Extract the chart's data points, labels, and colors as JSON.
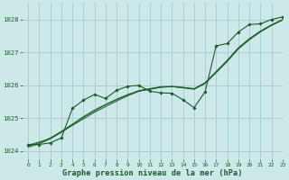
{
  "title": "Graphe pression niveau de la mer (hPa)",
  "bg_color": "#cce8e8",
  "grid_color": "#aacece",
  "line_color": "#1a5c2a",
  "xlim": [
    -0.5,
    23
  ],
  "ylim": [
    1023.75,
    1028.5
  ],
  "yticks": [
    1024,
    1025,
    1026,
    1027,
    1028
  ],
  "xticks": [
    0,
    1,
    2,
    3,
    4,
    5,
    6,
    7,
    8,
    9,
    10,
    11,
    12,
    13,
    14,
    15,
    16,
    17,
    18,
    19,
    20,
    21,
    22,
    23
  ],
  "series_main": [
    1024.2,
    1024.2,
    1024.25,
    1024.4,
    1025.3,
    1025.55,
    1025.72,
    1025.6,
    1025.85,
    1025.97,
    1026.0,
    1025.82,
    1025.77,
    1025.76,
    1025.56,
    1025.32,
    1025.8,
    1027.2,
    1027.27,
    1027.62,
    1027.85,
    1027.87,
    1028.0,
    1028.08
  ],
  "linear1": [
    1024.18,
    1024.28,
    1024.38,
    1024.58,
    1024.78,
    1024.98,
    1025.18,
    1025.35,
    1025.52,
    1025.68,
    1025.82,
    1025.88,
    1025.94,
    1025.96,
    1025.92,
    1025.88,
    1026.05,
    1026.38,
    1026.72,
    1027.1,
    1027.38,
    1027.62,
    1027.82,
    1027.98
  ],
  "linear2": [
    1024.15,
    1024.25,
    1024.4,
    1024.6,
    1024.82,
    1025.05,
    1025.25,
    1025.42,
    1025.58,
    1025.72,
    1025.84,
    1025.9,
    1025.96,
    1025.97,
    1025.94,
    1025.9,
    1026.08,
    1026.42,
    1026.76,
    1027.14,
    1027.42,
    1027.65,
    1027.84,
    1028.0
  ],
  "linear3": [
    1024.12,
    1024.22,
    1024.37,
    1024.57,
    1024.8,
    1025.02,
    1025.22,
    1025.4,
    1025.56,
    1025.7,
    1025.82,
    1025.88,
    1025.94,
    1025.96,
    1025.93,
    1025.89,
    1026.07,
    1026.41,
    1026.75,
    1027.13,
    1027.41,
    1027.64,
    1027.83,
    1027.99
  ]
}
